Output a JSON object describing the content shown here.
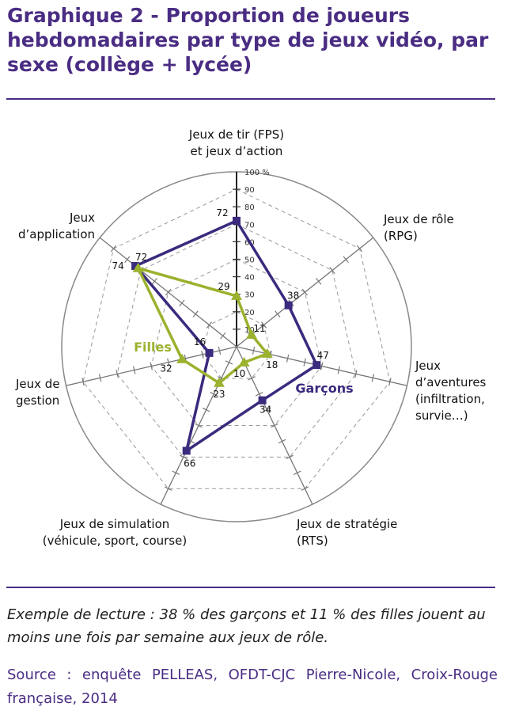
{
  "title": "Graphique 2 - Proportion de joueurs hebdomadaires par type de jeux vidéo, par sexe (collège + lycée)",
  "reading_example": "Exemple de lecture : 38 % des garçons et 11 % des filles jouent au moins une fois par semaine aux jeux de rôle.",
  "source": "Source : enquête PELLEAS, OFDT-CJC Pierre-Nicole, Croix-Rouge française, 2014",
  "chart_data": {
    "type": "radar",
    "axes": [
      {
        "lines": [
          "Jeux de tir (FPS)",
          "et jeux d’action"
        ]
      },
      {
        "lines": [
          "Jeux de rôle",
          "(RPG)"
        ]
      },
      {
        "lines": [
          "Jeux",
          "d’aventures",
          "(infiltration,",
          "survie…)"
        ]
      },
      {
        "lines": [
          "Jeux de stratégie",
          "(RTS)"
        ]
      },
      {
        "lines": [
          "Jeux de simulation",
          "(véhicule, sport, course)"
        ]
      },
      {
        "lines": [
          "Jeux de",
          "gestion"
        ]
      },
      {
        "lines": [
          "Jeux",
          "d’application"
        ]
      }
    ],
    "scale_ticks": [
      "10",
      "20",
      "30",
      "40",
      "50",
      "60",
      "70",
      "80",
      "90",
      "100 %"
    ],
    "range": [
      0,
      100
    ],
    "series": [
      {
        "name": "Garçons",
        "color": "#3b2a7e",
        "marker": "square",
        "values": [
          72,
          38,
          47,
          34,
          66,
          16,
          74
        ]
      },
      {
        "name": "Filles",
        "color": "#9ab22e",
        "marker": "triangle",
        "values": [
          29,
          11,
          18,
          10,
          23,
          32,
          72
        ]
      }
    ]
  }
}
